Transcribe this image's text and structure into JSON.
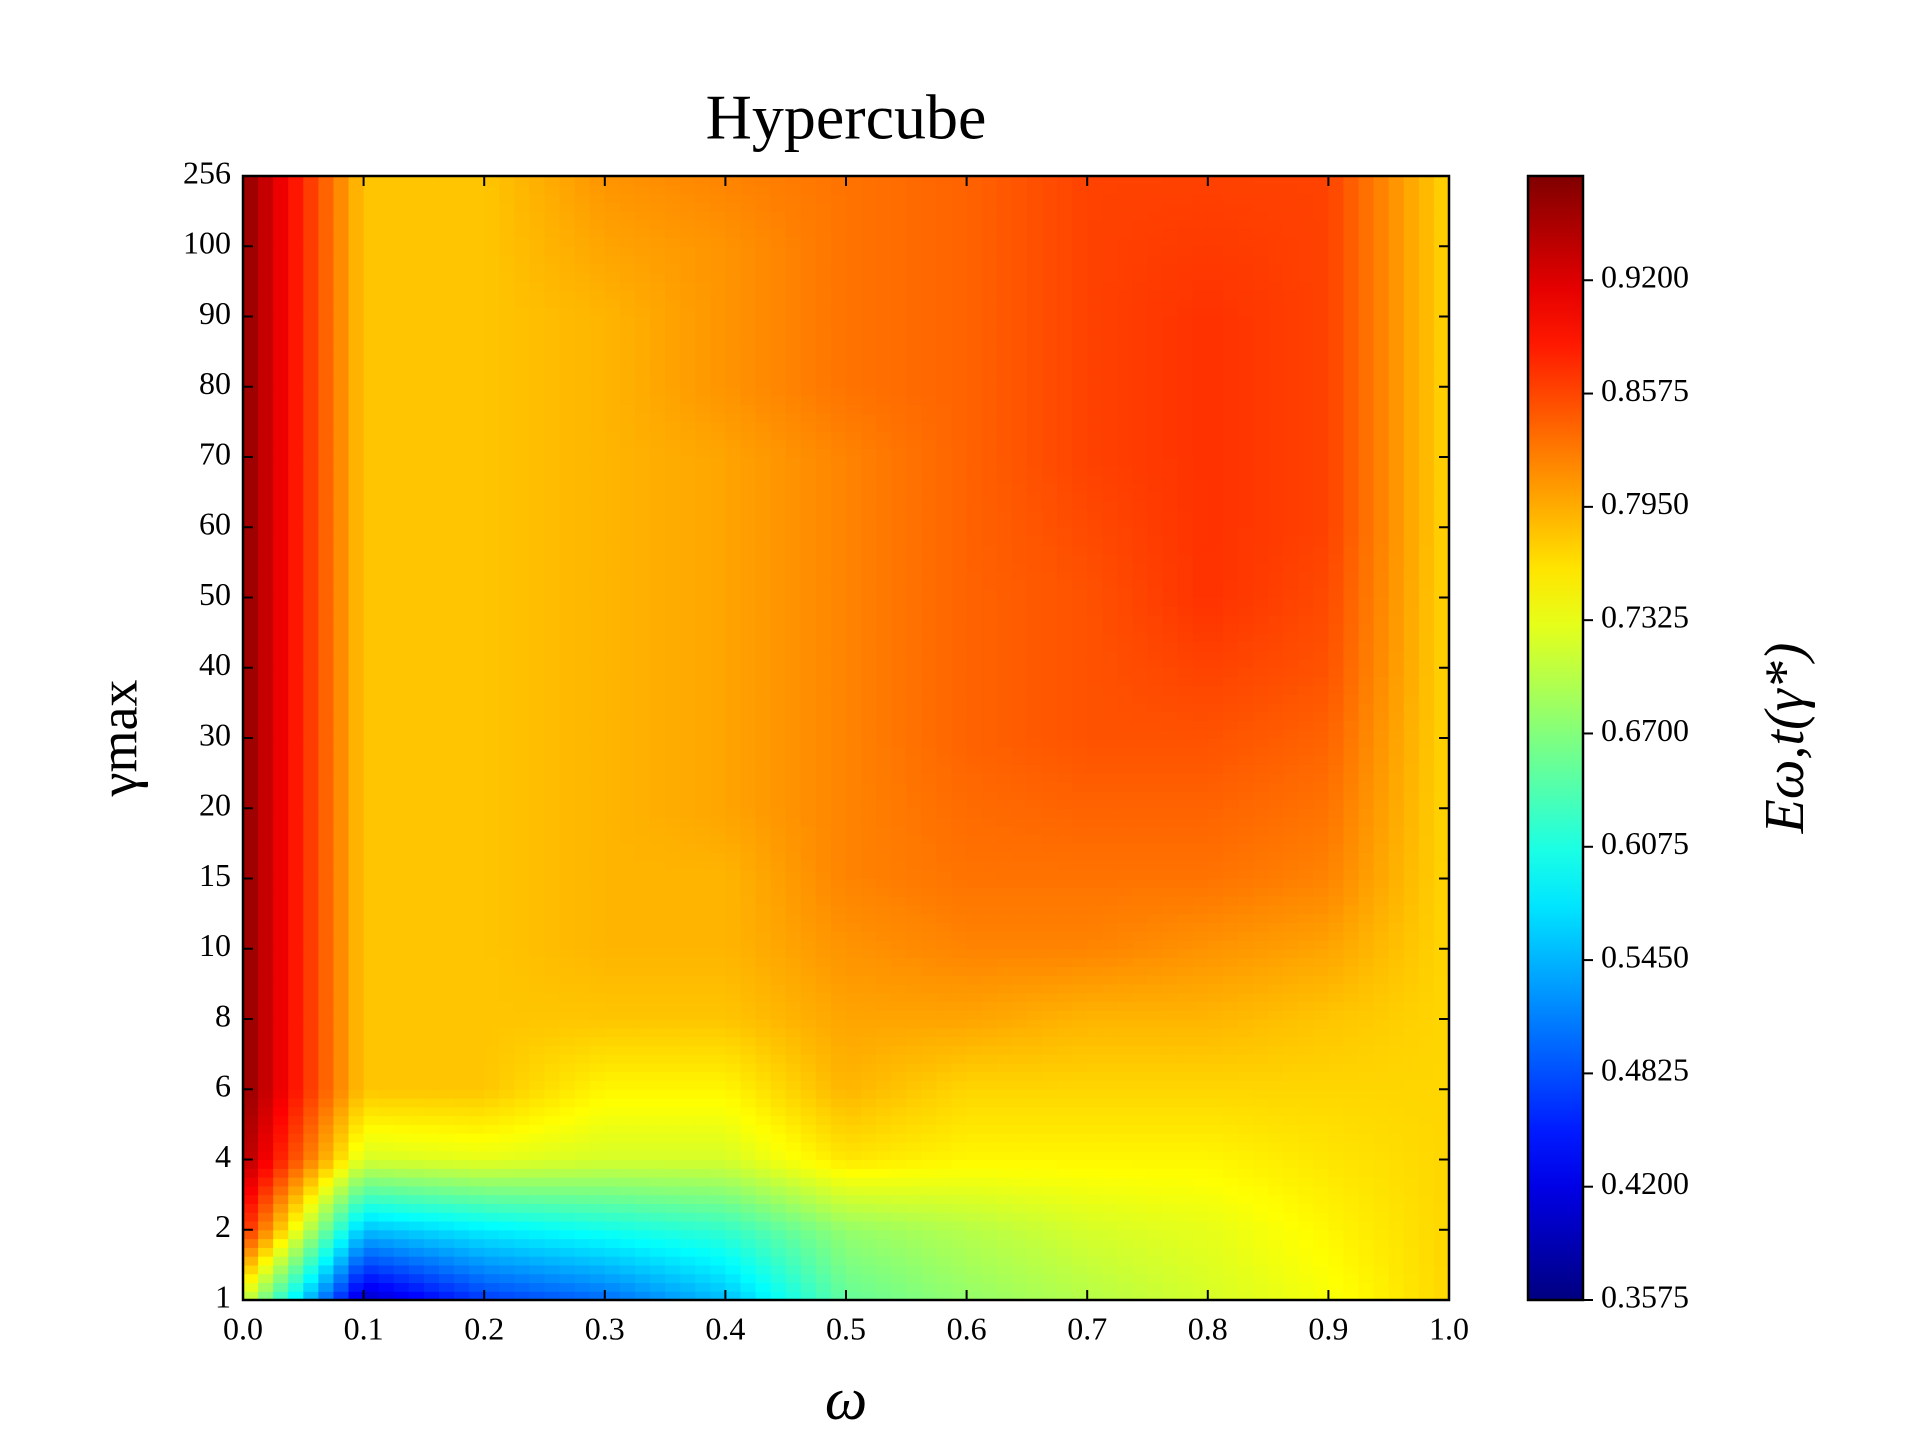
{
  "chart_data": {
    "type": "heatmap",
    "title": "Hypercube",
    "xlabel": "ω",
    "ylabel": "γmax",
    "colorbar_label": "Eω,t(γ*)",
    "x": [
      0.0,
      0.1,
      0.2,
      0.3,
      0.4,
      0.5,
      0.6,
      0.7,
      0.8,
      0.9,
      1.0
    ],
    "y_categories": [
      1,
      2,
      4,
      6,
      8,
      10,
      15,
      20,
      30,
      40,
      50,
      60,
      70,
      80,
      90,
      100,
      256
    ],
    "values": [
      [
        0.72,
        0.4,
        0.47,
        0.5,
        0.55,
        0.65,
        0.68,
        0.7,
        0.72,
        0.74,
        0.77
      ],
      [
        0.88,
        0.55,
        0.58,
        0.6,
        0.62,
        0.68,
        0.7,
        0.72,
        0.73,
        0.75,
        0.77
      ],
      [
        0.95,
        0.72,
        0.73,
        0.72,
        0.72,
        0.76,
        0.75,
        0.75,
        0.75,
        0.76,
        0.77
      ],
      [
        0.97,
        0.78,
        0.78,
        0.75,
        0.75,
        0.79,
        0.77,
        0.77,
        0.77,
        0.77,
        0.77
      ],
      [
        0.97,
        0.78,
        0.78,
        0.78,
        0.78,
        0.8,
        0.8,
        0.79,
        0.79,
        0.78,
        0.77
      ],
      [
        0.97,
        0.78,
        0.78,
        0.79,
        0.79,
        0.81,
        0.82,
        0.82,
        0.81,
        0.8,
        0.77
      ],
      [
        0.97,
        0.78,
        0.78,
        0.79,
        0.79,
        0.82,
        0.83,
        0.83,
        0.83,
        0.82,
        0.77
      ],
      [
        0.97,
        0.78,
        0.78,
        0.79,
        0.8,
        0.82,
        0.835,
        0.84,
        0.84,
        0.83,
        0.77
      ],
      [
        0.97,
        0.78,
        0.78,
        0.79,
        0.8,
        0.82,
        0.84,
        0.85,
        0.85,
        0.84,
        0.77
      ],
      [
        0.97,
        0.78,
        0.78,
        0.79,
        0.8,
        0.82,
        0.84,
        0.85,
        0.86,
        0.85,
        0.77
      ],
      [
        0.97,
        0.78,
        0.78,
        0.79,
        0.8,
        0.82,
        0.84,
        0.85,
        0.87,
        0.855,
        0.77
      ],
      [
        0.97,
        0.78,
        0.78,
        0.79,
        0.8,
        0.82,
        0.84,
        0.855,
        0.87,
        0.86,
        0.77
      ],
      [
        0.97,
        0.78,
        0.78,
        0.79,
        0.8,
        0.82,
        0.84,
        0.86,
        0.87,
        0.86,
        0.77
      ],
      [
        0.97,
        0.78,
        0.78,
        0.79,
        0.81,
        0.83,
        0.84,
        0.86,
        0.87,
        0.86,
        0.77
      ],
      [
        0.97,
        0.78,
        0.78,
        0.79,
        0.81,
        0.83,
        0.84,
        0.86,
        0.87,
        0.86,
        0.77
      ],
      [
        0.97,
        0.78,
        0.78,
        0.8,
        0.81,
        0.83,
        0.84,
        0.86,
        0.865,
        0.86,
        0.77
      ],
      [
        0.97,
        0.78,
        0.78,
        0.81,
        0.82,
        0.83,
        0.84,
        0.86,
        0.86,
        0.86,
        0.77
      ]
    ],
    "xlim": [
      0.0,
      1.0
    ],
    "xticks": [
      {
        "value": 0.0,
        "label": "0.0"
      },
      0.1,
      0.2,
      0.3,
      0.4,
      0.5,
      0.6,
      0.7,
      0.8,
      0.9,
      {
        "value": 1.0,
        "label": "1.0"
      }
    ],
    "colormap": "jet",
    "clim": [
      0.3575,
      0.9775
    ],
    "colorbar_ticks": [
      0.3575,
      {
        "value": 0.42,
        "label": "0.4200"
      },
      0.4825,
      {
        "value": 0.545,
        "label": "0.5450"
      },
      0.6075,
      {
        "value": 0.67,
        "label": "0.6700"
      },
      0.7325,
      {
        "value": 0.795,
        "label": "0.7950"
      },
      0.8575,
      {
        "value": 0.92,
        "label": "0.9200"
      }
    ]
  }
}
